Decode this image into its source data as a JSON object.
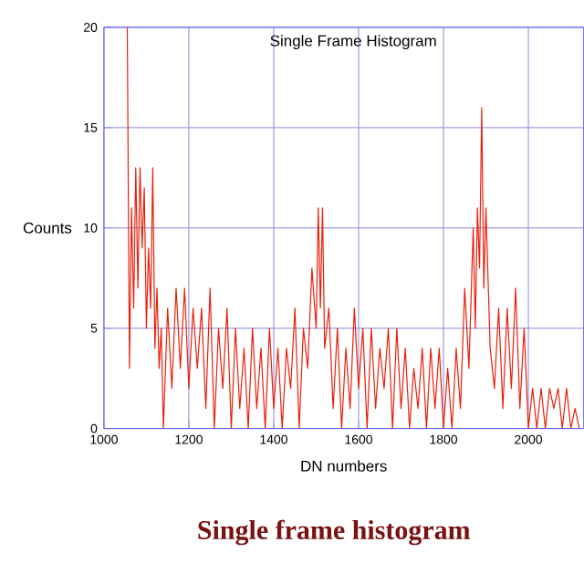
{
  "chart_data": {
    "type": "line",
    "title": "Single Frame Histogram",
    "xlabel": "DN numbers",
    "ylabel": "Counts",
    "annotations": [
      "Single frame histogram"
    ],
    "x": [
      1055,
      1060,
      1065,
      1070,
      1075,
      1080,
      1085,
      1090,
      1095,
      1100,
      1105,
      1110,
      1115,
      1120,
      1125,
      1130,
      1135,
      1140,
      1150,
      1160,
      1170,
      1180,
      1190,
      1200,
      1210,
      1220,
      1230,
      1240,
      1250,
      1260,
      1270,
      1280,
      1290,
      1300,
      1310,
      1320,
      1330,
      1340,
      1350,
      1360,
      1370,
      1380,
      1390,
      1400,
      1410,
      1420,
      1430,
      1440,
      1450,
      1460,
      1470,
      1480,
      1490,
      1500,
      1505,
      1510,
      1515,
      1520,
      1530,
      1540,
      1550,
      1560,
      1570,
      1580,
      1590,
      1600,
      1610,
      1620,
      1630,
      1640,
      1650,
      1660,
      1670,
      1680,
      1690,
      1700,
      1710,
      1720,
      1730,
      1740,
      1750,
      1760,
      1770,
      1780,
      1790,
      1800,
      1810,
      1820,
      1830,
      1840,
      1850,
      1860,
      1870,
      1875,
      1880,
      1885,
      1890,
      1895,
      1900,
      1910,
      1920,
      1930,
      1940,
      1950,
      1960,
      1970,
      1980,
      1990,
      2000,
      2010,
      2020,
      2030,
      2040,
      2050,
      2060,
      2070,
      2080,
      2090,
      2100,
      2110,
      2120
    ],
    "values": [
      20,
      3,
      11,
      6,
      13,
      7,
      13,
      9,
      12,
      5,
      9,
      6,
      13,
      4,
      7,
      3,
      5,
      0,
      6,
      2,
      7,
      3,
      7,
      2,
      6,
      3,
      6,
      1,
      7,
      0,
      5,
      2,
      6,
      0,
      5,
      1,
      4,
      0,
      5,
      1,
      4,
      0,
      5,
      1,
      4,
      0,
      4,
      2,
      6,
      0,
      5,
      3,
      8,
      5,
      11,
      6,
      11,
      4,
      6,
      1,
      5,
      0,
      4,
      1,
      6,
      2,
      5,
      0,
      5,
      1,
      4,
      2,
      5,
      0,
      5,
      1,
      4,
      0,
      3,
      1,
      4,
      0,
      4,
      1,
      4,
      0,
      3,
      0,
      4,
      1,
      7,
      3,
      10,
      5,
      11,
      8,
      16,
      7,
      11,
      4,
      2,
      6,
      1,
      6,
      2,
      7,
      1,
      5,
      0,
      2,
      0,
      2,
      0,
      2,
      1,
      2,
      0,
      2,
      0,
      1,
      0
    ],
    "color": "#e8200c",
    "xlim": [
      1000,
      2130
    ],
    "ylim": [
      0,
      20
    ],
    "xticks": [
      1000,
      1200,
      1400,
      1600,
      1800,
      2000
    ],
    "yticks": [
      0,
      5,
      10,
      15,
      20
    ],
    "grid": true
  }
}
